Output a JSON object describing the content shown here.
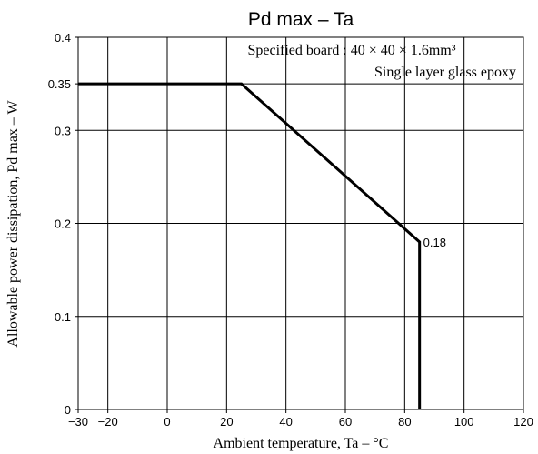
{
  "chart_data": {
    "type": "line",
    "title": "Pd max  –  Ta",
    "xlabel": "Ambient temperature, Ta  –  °C",
    "ylabel": "Allowable power dissipation, Pd max  –  W",
    "xlim": [
      -30,
      120
    ],
    "ylim": [
      0,
      0.4
    ],
    "x_ticks": [
      -30,
      -20,
      0,
      20,
      40,
      60,
      80,
      100,
      120
    ],
    "x_tick_labels": [
      "−30",
      "−20",
      "0",
      "20",
      "40",
      "60",
      "80",
      "100",
      "120"
    ],
    "y_ticks": [
      0,
      0.1,
      0.2,
      0.3,
      0.35,
      0.4
    ],
    "y_tick_labels": [
      "0",
      "0.1",
      "0.2",
      "0.3",
      "0.35",
      "0.4"
    ],
    "grid": true,
    "grid_x": [
      -20,
      0,
      20,
      40,
      60,
      80,
      100
    ],
    "grid_y": [
      0.1,
      0.2,
      0.3,
      0.35
    ],
    "series": [
      {
        "color": "#000000",
        "points": [
          [
            -30,
            0.35
          ],
          [
            25,
            0.35
          ],
          [
            85,
            0.18
          ],
          [
            85,
            0
          ]
        ]
      }
    ],
    "annotations": {
      "point_label": {
        "text": "0.18",
        "x": 85,
        "y": 0.18
      },
      "board_line1": "Specified board : 40 × 40 × 1.6mm³",
      "board_line2": "Single layer glass epoxy"
    }
  }
}
